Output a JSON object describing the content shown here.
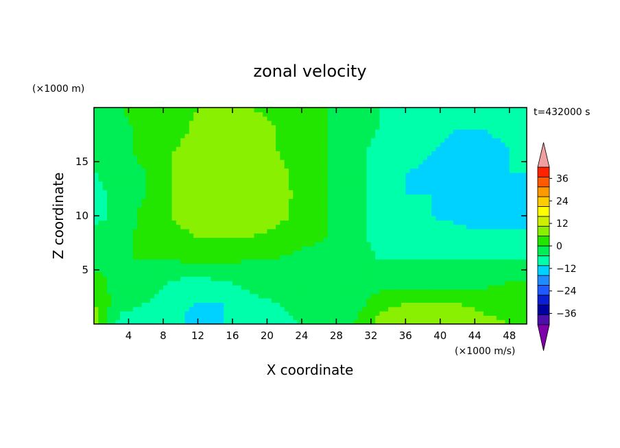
{
  "chart_data": {
    "type": "heatmap",
    "title": "zonal velocity",
    "xlabel": "X coordinate",
    "ylabel": "Z coordinate",
    "x_unit_note": "(×1000 m/s)",
    "y_unit_note": "(×1000 m)",
    "time_label": "t=432000 s",
    "xlim": [
      0,
      50
    ],
    "ylim": [
      0,
      20
    ],
    "x_ticks": [
      4,
      8,
      12,
      16,
      20,
      24,
      28,
      32,
      36,
      40,
      44,
      48
    ],
    "y_ticks": [
      5,
      10,
      15
    ],
    "colorbar": {
      "levels": [
        -42,
        -36,
        -30,
        -24,
        -18,
        -12,
        -6,
        0,
        6,
        12,
        18,
        24,
        30,
        36,
        42
      ],
      "tick_labels": [
        "36",
        "24",
        "12",
        "0",
        "−12",
        "−24",
        "−36"
      ],
      "tick_values": [
        36,
        24,
        12,
        0,
        -12,
        -24,
        -36
      ],
      "colors": [
        "#7f00aa",
        "#4b0faa",
        "#0000a0",
        "#0a1ed2",
        "#1e5aff",
        "#1e8cff",
        "#00d2ff",
        "#00ffaa",
        "#00ee55",
        "#22e600",
        "#88f000",
        "#ccf000",
        "#ffff00",
        "#ffcc00",
        "#ff9900",
        "#ff5a00",
        "#ff2200",
        "#f0a0a0"
      ]
    },
    "field": {
      "x": [
        0,
        3,
        6,
        9,
        12,
        15,
        18,
        21,
        24,
        27,
        30,
        33,
        36,
        39,
        42,
        45,
        48,
        50
      ],
      "z": [
        0,
        2,
        4,
        6,
        8,
        10,
        12,
        14,
        16,
        18,
        20
      ],
      "u": [
        [
          10,
          -8,
          -8,
          -10,
          -15,
          -12,
          -10,
          -8,
          -6,
          -4,
          0,
          8,
          10,
          10,
          10,
          8,
          6,
          5
        ],
        [
          6,
          -4,
          -6,
          -10,
          -12,
          -12,
          -8,
          -6,
          -4,
          -2,
          -4,
          4,
          6,
          6,
          6,
          4,
          4,
          3
        ],
        [
          2,
          -2,
          -2,
          -6,
          -8,
          -6,
          -4,
          -2,
          -3,
          -2,
          -4,
          -4,
          -6,
          -6,
          -4,
          -2,
          0,
          0
        ],
        [
          -2,
          0,
          0,
          0,
          2,
          2,
          0,
          0,
          -2,
          -2,
          -4,
          -6,
          -6,
          -6,
          -6,
          -6,
          -6,
          -6
        ],
        [
          -4,
          -2,
          2,
          4,
          6,
          6,
          6,
          4,
          2,
          0,
          -4,
          -8,
          -10,
          -10,
          -10,
          -10,
          -10,
          -10
        ],
        [
          -8,
          -4,
          2,
          6,
          9,
          10,
          10,
          8,
          4,
          0,
          -4,
          -8,
          -12,
          -12,
          -13,
          -16,
          -16,
          -14
        ],
        [
          -8,
          -4,
          0,
          6,
          10,
          11,
          11,
          9,
          4,
          0,
          -4,
          -8,
          -12,
          -12,
          -13,
          -15,
          -16,
          -14
        ],
        [
          -6,
          -4,
          0,
          6,
          9,
          11,
          11,
          8,
          4,
          0,
          -4,
          -8,
          -12,
          -13,
          -13,
          -12,
          -12,
          -12
        ],
        [
          -4,
          -2,
          2,
          6,
          8,
          10,
          10,
          6,
          4,
          0,
          -4,
          -8,
          -10,
          -12,
          -14,
          -15,
          -12,
          -12
        ],
        [
          -4,
          -2,
          2,
          4,
          7,
          8,
          8,
          6,
          4,
          0,
          -4,
          -6,
          -8,
          -10,
          -12,
          -12,
          -10,
          -10
        ],
        [
          -4,
          0,
          2,
          4,
          6,
          6,
          6,
          5,
          4,
          0,
          -4,
          -6,
          -6,
          -8,
          -10,
          -10,
          -8,
          -8
        ]
      ]
    }
  }
}
